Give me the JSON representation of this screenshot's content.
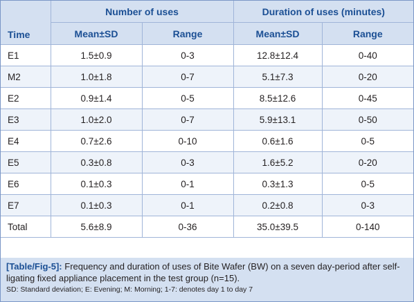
{
  "table": {
    "header": {
      "time": "Time",
      "group1": "Number of uses",
      "group2": "Duration of uses (minutes)",
      "sub": [
        "Mean±SD",
        "Range",
        "Mean±SD",
        "Range"
      ]
    },
    "rows": [
      {
        "time": "E1",
        "n_mean": "1.5±0.9",
        "n_range": "0-3",
        "d_mean": "12.8±12.4",
        "d_range": "0-40"
      },
      {
        "time": "M2",
        "n_mean": "1.0±1.8",
        "n_range": "0-7",
        "d_mean": "5.1±7.3",
        "d_range": "0-20"
      },
      {
        "time": "E2",
        "n_mean": "0.9±1.4",
        "n_range": "0-5",
        "d_mean": "8.5±12.6",
        "d_range": "0-45"
      },
      {
        "time": "E3",
        "n_mean": "1.0±2.0",
        "n_range": "0-7",
        "d_mean": "5.9±13.1",
        "d_range": "0-50"
      },
      {
        "time": "E4",
        "n_mean": "0.7±2.6",
        "n_range": "0-10",
        "d_mean": "0.6±1.6",
        "d_range": "0-5"
      },
      {
        "time": "E5",
        "n_mean": "0.3±0.8",
        "n_range": "0-3",
        "d_mean": "1.6±5.2",
        "d_range": "0-20"
      },
      {
        "time": "E6",
        "n_mean": "0.1±0.3",
        "n_range": "0-1",
        "d_mean": "0.3±1.3",
        "d_range": "0-5"
      },
      {
        "time": "E7",
        "n_mean": "0.1±0.3",
        "n_range": "0-1",
        "d_mean": "0.2±0.8",
        "d_range": "0-3"
      },
      {
        "time": "Total",
        "n_mean": "5.6±8.9",
        "n_range": "0-36",
        "d_mean": "35.0±39.5",
        "d_range": "0-140"
      }
    ]
  },
  "caption": {
    "tag": "[Table/Fig-5]:",
    "text": " Frequency and duration of uses of Bite Wafer (BW) on a seven day-period after self-ligating fixed appliance placement in the test group (n=15).",
    "note": "SD: Standard deviation; E: Evening; M: Morning; 1-7: denotes day 1 to day 7"
  },
  "colors": {
    "header_bg": "#d4e0f1",
    "header_text": "#1b4f94",
    "row_alt": "#eef3fa",
    "border": "#9fb4d8"
  }
}
